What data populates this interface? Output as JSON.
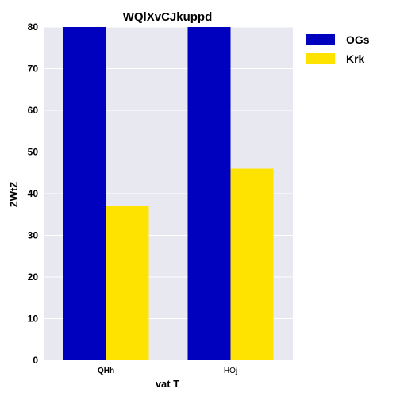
{
  "chart_data": {
    "type": "bar",
    "title": "WQlXvCJkuppd",
    "xlabel": "vat  T",
    "ylabel": "ZWtZ",
    "categories": [
      "QHh",
      "HOj"
    ],
    "category_label_weight": [
      "bold",
      "normal"
    ],
    "series": [
      {
        "name": "OGs",
        "color": "#0000bf",
        "values": [
          80,
          80
        ]
      },
      {
        "name": "Krk",
        "color": "#ffe300",
        "values": [
          37,
          46
        ]
      }
    ],
    "ylim": [
      0,
      80
    ],
    "yticks": [
      0,
      10,
      20,
      30,
      40,
      50,
      60,
      70,
      80
    ],
    "grid": true,
    "plot_background": "#e8e8f0",
    "legend_position": "outside-right"
  }
}
